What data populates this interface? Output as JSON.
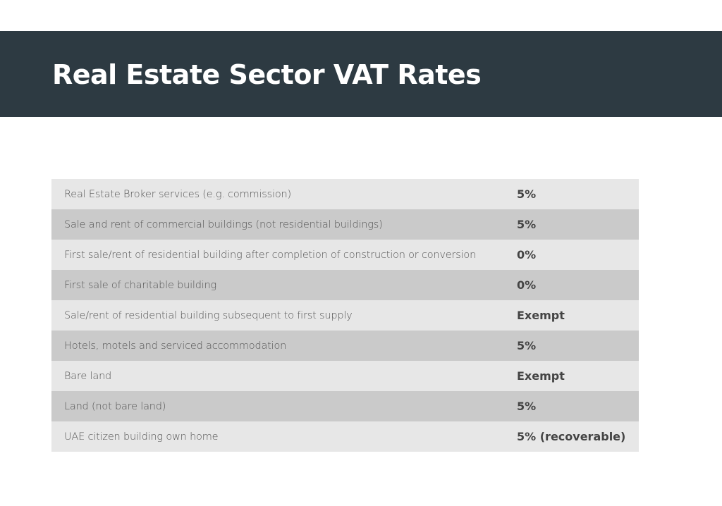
{
  "header": {
    "title": "Real Estate Sector VAT Rates",
    "background": "#2d3a42"
  },
  "table": {
    "rows": [
      {
        "description": "Real Estate Broker services (e.g. commission)",
        "rate": "5%"
      },
      {
        "description": "Sale and rent of commercial buildings (not residential buildings)",
        "rate": "5%"
      },
      {
        "description": "First sale/rent of residential building after completion of construction or conversion",
        "rate": "0%"
      },
      {
        "description": "First sale of charitable building",
        "rate": "0%"
      },
      {
        "description": "Sale/rent of residential building subsequent to first supply",
        "rate": "Exempt"
      },
      {
        "description": "Hotels, motels and serviced accommodation",
        "rate": "5%"
      },
      {
        "description": "Bare land",
        "rate": "Exempt"
      },
      {
        "description": "Land (not bare land)",
        "rate": "5%"
      },
      {
        "description": "UAE citizen building own home",
        "rate": "5% (recoverable)"
      }
    ]
  }
}
